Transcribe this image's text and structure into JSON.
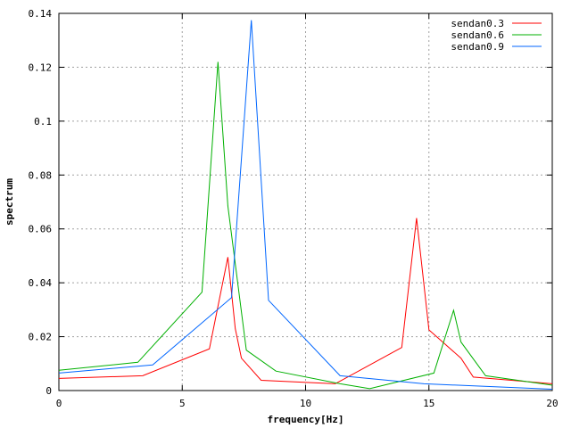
{
  "chart_data": {
    "type": "line",
    "title": "",
    "xlabel": "frequency[Hz]",
    "ylabel": "spectrum",
    "xlim": [
      0,
      20
    ],
    "ylim": [
      0,
      0.14
    ],
    "xticks": [
      0,
      5,
      10,
      15,
      20
    ],
    "yticks": [
      0,
      0.02,
      0.04,
      0.06,
      0.08,
      0.1,
      0.12,
      0.14
    ],
    "xtick_labels": [
      "0",
      "5",
      "10",
      "15",
      "20"
    ],
    "ytick_labels": [
      "0",
      "0.02",
      "0.04",
      "0.06",
      "0.08",
      "0.1",
      "0.12",
      "0.14"
    ],
    "grid": true,
    "legend_position": "top-right",
    "series": [
      {
        "name": "sendan0.3",
        "color": "#ff0000",
        "x": [
          0,
          3.4,
          6.1,
          6.85,
          7.15,
          7.4,
          8.2,
          11.2,
          13.9,
          14.5,
          15.0,
          16.3,
          16.8,
          20.0
        ],
        "y": [
          0.0045,
          0.0055,
          0.0155,
          0.0495,
          0.023,
          0.012,
          0.0038,
          0.0025,
          0.016,
          0.064,
          0.0225,
          0.012,
          0.005,
          0.0025
        ]
      },
      {
        "name": "sendan0.6",
        "color": "#00b000",
        "x": [
          0,
          3.2,
          5.8,
          6.45,
          6.85,
          7.6,
          8.8,
          11.4,
          12.6,
          15.2,
          16.0,
          16.3,
          17.3,
          20.0
        ],
        "y": [
          0.0075,
          0.0105,
          0.0365,
          0.122,
          0.0685,
          0.015,
          0.0072,
          0.0025,
          0.0007,
          0.0065,
          0.0298,
          0.018,
          0.0055,
          0.002
        ]
      },
      {
        "name": "sendan0.9",
        "color": "#0066ff",
        "x": [
          0,
          3.8,
          7.0,
          7.8,
          8.5,
          11.4,
          14.8,
          20.0
        ],
        "y": [
          0.0065,
          0.0095,
          0.0345,
          0.1375,
          0.0335,
          0.0055,
          0.0025,
          0.0005
        ]
      }
    ]
  }
}
